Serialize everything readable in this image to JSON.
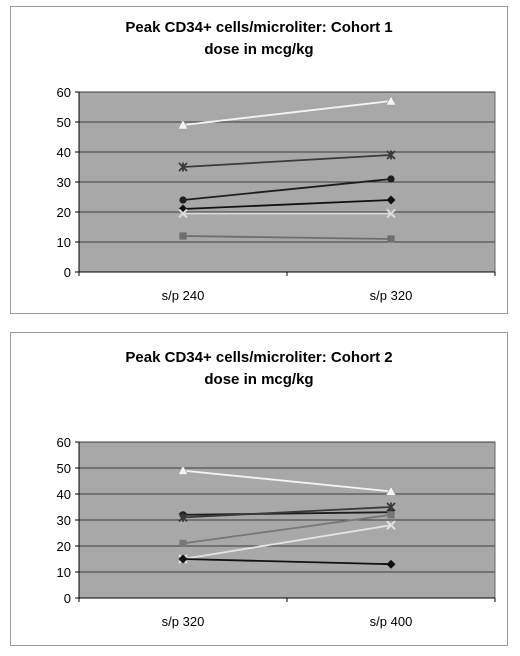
{
  "chart_data": [
    {
      "type": "line",
      "title_lines": [
        "Peak CD34+ cells/microliter: Cohort 1",
        "dose in mcg/kg"
      ],
      "categories": [
        "s/p 240",
        "s/p 320"
      ],
      "ylim": [
        0,
        60
      ],
      "yticks": [
        0,
        10,
        20,
        30,
        40,
        50,
        60
      ],
      "grid": true,
      "plot_background": "#a8a8a8",
      "series": [
        {
          "values": [
            49,
            57
          ],
          "color": "#f4f4f4",
          "marker": "triangle"
        },
        {
          "values": [
            35,
            39
          ],
          "color": "#3a3a3a",
          "marker": "star"
        },
        {
          "values": [
            24,
            31
          ],
          "color": "#1e1e1e",
          "marker": "circle"
        },
        {
          "values": [
            21,
            24
          ],
          "color": "#111111",
          "marker": "diamond"
        },
        {
          "values": [
            19.5,
            19.5
          ],
          "color": "#dcdcdc",
          "marker": "x"
        },
        {
          "values": [
            12,
            11
          ],
          "color": "#6e6e6e",
          "marker": "square"
        }
      ]
    },
    {
      "type": "line",
      "title_lines": [
        "Peak CD34+ cells/microliter: Cohort 2",
        "dose in mcg/kg"
      ],
      "categories": [
        "s/p 320",
        "s/p 400"
      ],
      "ylim": [
        0,
        60
      ],
      "yticks": [
        0,
        10,
        20,
        30,
        40,
        50,
        60
      ],
      "grid": true,
      "plot_background": "#a8a8a8",
      "series": [
        {
          "values": [
            49,
            41
          ],
          "color": "#f4f4f4",
          "marker": "triangle"
        },
        {
          "values": [
            32,
            33
          ],
          "color": "#1e1e1e",
          "marker": "circle"
        },
        {
          "values": [
            31,
            35
          ],
          "color": "#3a3a3a",
          "marker": "star"
        },
        {
          "values": [
            21,
            32
          ],
          "color": "#777777",
          "marker": "square"
        },
        {
          "values": [
            15,
            28
          ],
          "color": "#e2e2e2",
          "marker": "x"
        },
        {
          "values": [
            15,
            13
          ],
          "color": "#111111",
          "marker": "diamond"
        }
      ]
    }
  ]
}
